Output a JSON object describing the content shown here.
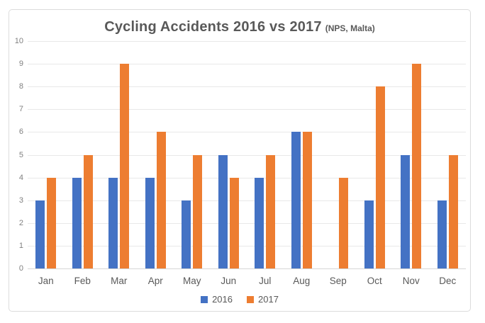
{
  "chart_data": {
    "type": "bar",
    "title": "Cycling Accidents 2016 vs 2017",
    "subtitle": "(NPS, Malta)",
    "categories": [
      "Jan",
      "Feb",
      "Mar",
      "Apr",
      "May",
      "Jun",
      "Jul",
      "Aug",
      "Sep",
      "Oct",
      "Nov",
      "Dec"
    ],
    "series": [
      {
        "name": "2016",
        "color": "#4472C4",
        "values": [
          3,
          4,
          4,
          4,
          3,
          5,
          4,
          6,
          0,
          3,
          5,
          3
        ]
      },
      {
        "name": "2017",
        "color": "#ED7D31",
        "values": [
          4,
          5,
          9,
          6,
          5,
          4,
          5,
          6,
          4,
          8,
          9,
          5
        ]
      }
    ],
    "ylim": [
      0,
      10
    ],
    "ytick_step": 1,
    "yticks": [
      0,
      1,
      2,
      3,
      4,
      5,
      6,
      7,
      8,
      9,
      10
    ],
    "xlabel": "",
    "ylabel": "",
    "grid": "horizontal",
    "legend_position": "bottom-center"
  },
  "colors": {
    "grid": "#e8e8e8",
    "axis_line": "#d6d6d6",
    "tick_label": "#808080",
    "category_label": "#595959",
    "title": "#595959",
    "card_border": "#dcdcdc",
    "background": "#ffffff"
  }
}
